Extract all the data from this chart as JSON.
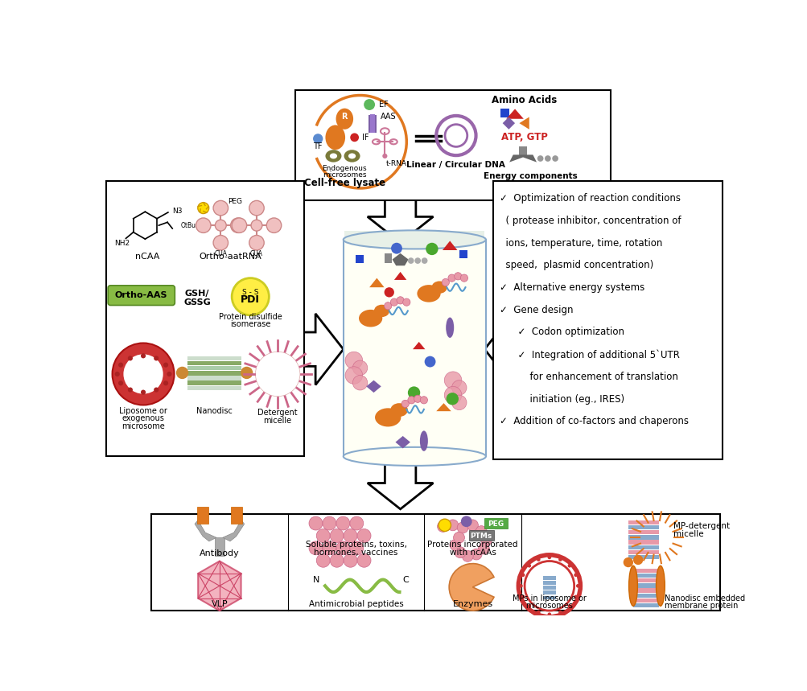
{
  "background": "#ffffff",
  "right_box_items": [
    "✓  Optimization of reaction conditions",
    "  ( protease inhibitor, concentration of",
    "  ions, temperature, time, rotation",
    "  speed,  plasmid concentration)",
    "✓  Alternative energy systems",
    "✓  Gene design",
    "      ✓  Codon optimization",
    "      ✓  Integration of additional 5`UTR",
    "          for enhancement of translation",
    "          initiation (eg., IRES)",
    "✓  Addition of co-factors and chaperons"
  ]
}
